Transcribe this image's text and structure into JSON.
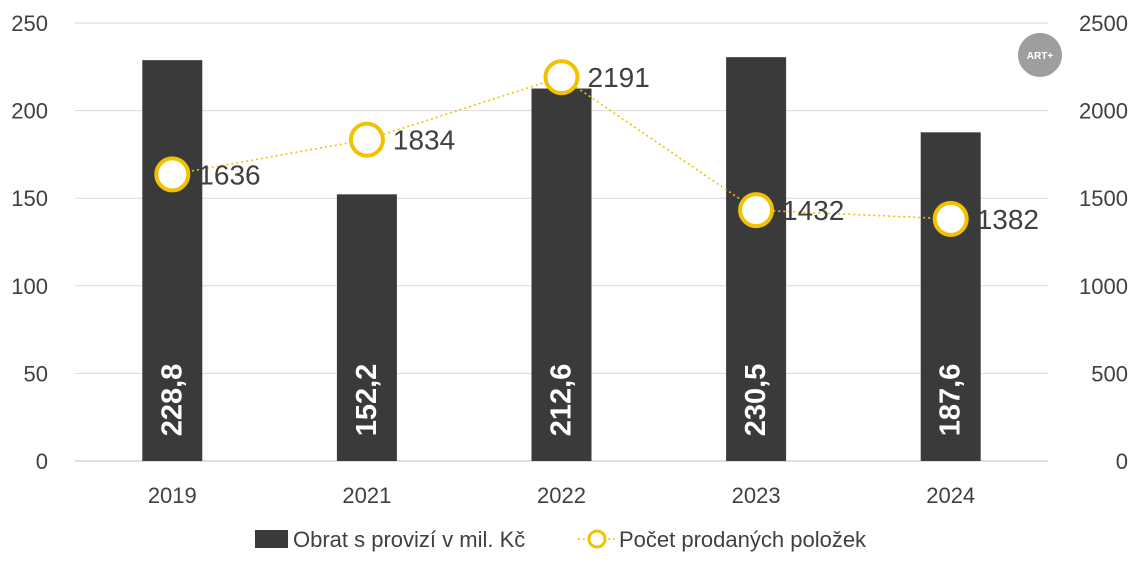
{
  "badge": {
    "text": "ART+"
  },
  "colors": {
    "bar": "#3a3a3a",
    "line": "#f2c200",
    "grid": "#d9d9d9",
    "text": "#404040",
    "badge": "#9e9e9e"
  },
  "chart_data": {
    "type": "bar",
    "categories": [
      "2019",
      "2021",
      "2022",
      "2023",
      "2024"
    ],
    "series": [
      {
        "name": "Obrat s provizí v mil. Kč",
        "type": "bar",
        "axis": "left",
        "values": [
          228.8,
          152.2,
          212.6,
          230.5,
          187.6
        ],
        "labels": [
          "228,8",
          "152,2",
          "212,6",
          "230,5",
          "187,6"
        ]
      },
      {
        "name": "Počet prodaných položek",
        "type": "line",
        "axis": "right",
        "style": "dotted line with hollow circle markers",
        "values": [
          1636,
          1834,
          2191,
          1432,
          1382
        ],
        "labels": [
          "1636",
          "1834",
          "2191",
          "1432",
          "1382"
        ]
      }
    ],
    "y_left": {
      "min": 0,
      "max": 250,
      "ticks": [
        "0",
        "50",
        "100",
        "150",
        "200",
        "250"
      ]
    },
    "y_right": {
      "min": 0,
      "max": 2500,
      "ticks": [
        "0",
        "500",
        "1000",
        "1500",
        "2000",
        "2500"
      ]
    },
    "grid": true,
    "legend": {
      "position": "bottom",
      "items": [
        "Obrat s provizí v mil. Kč",
        "Počet prodaných položek"
      ]
    }
  }
}
